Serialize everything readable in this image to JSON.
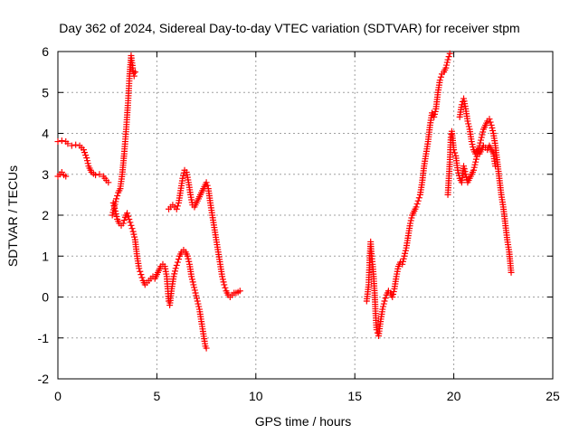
{
  "chart_data": {
    "type": "scatter",
    "title": "Day 362 of 2024, Sidereal Day-to-day VTEC variation (SDTVAR) for receiver stpm",
    "xlabel": "GPS time / hours",
    "ylabel": "SDTVAR / TECUs",
    "xlim": [
      0,
      25
    ],
    "ylim": [
      -2,
      6
    ],
    "xticks": [
      "0",
      "5",
      "10",
      "15",
      "20",
      "25"
    ],
    "yticks": [
      "-2",
      "-1",
      "0",
      "1",
      "2",
      "3",
      "4",
      "5",
      "6"
    ],
    "grid": true,
    "marker": "+",
    "marker_color": "#ff0000",
    "segments": [
      [
        [
          0.0,
          2.95
        ],
        [
          0.1,
          3.0
        ],
        [
          0.2,
          3.05
        ],
        [
          0.3,
          2.98
        ],
        [
          0.4,
          2.95
        ]
      ],
      [
        [
          0.0,
          3.8
        ],
        [
          0.2,
          3.82
        ],
        [
          0.4,
          3.8
        ],
        [
          0.5,
          3.75
        ],
        [
          0.7,
          3.7
        ],
        [
          0.9,
          3.72
        ],
        [
          1.1,
          3.7
        ],
        [
          1.3,
          3.6
        ],
        [
          1.45,
          3.4
        ],
        [
          1.55,
          3.2
        ],
        [
          1.7,
          3.05
        ],
        [
          1.9,
          2.98
        ],
        [
          2.1,
          3.0
        ],
        [
          2.3,
          2.95
        ],
        [
          2.45,
          2.85
        ],
        [
          2.55,
          2.8
        ]
      ],
      [
        [
          2.75,
          2.0
        ],
        [
          2.85,
          2.2
        ],
        [
          2.95,
          2.4
        ],
        [
          3.05,
          2.55
        ],
        [
          3.15,
          2.65
        ],
        [
          3.25,
          3.0
        ],
        [
          3.35,
          3.5
        ],
        [
          3.45,
          4.1
        ],
        [
          3.55,
          4.8
        ],
        [
          3.62,
          5.4
        ],
        [
          3.7,
          5.9
        ],
        [
          3.78,
          5.6
        ],
        [
          3.85,
          5.4
        ],
        [
          3.9,
          5.5
        ]
      ],
      [
        [
          2.8,
          2.3
        ],
        [
          2.9,
          2.1
        ],
        [
          3.0,
          1.9
        ],
        [
          3.1,
          1.8
        ],
        [
          3.2,
          1.75
        ],
        [
          3.3,
          1.8
        ],
        [
          3.4,
          1.95
        ],
        [
          3.5,
          2.05
        ],
        [
          3.6,
          1.9
        ],
        [
          3.7,
          1.75
        ],
        [
          3.8,
          1.6
        ],
        [
          3.9,
          1.4
        ],
        [
          4.0,
          1.0
        ],
        [
          4.1,
          0.7
        ],
        [
          4.2,
          0.55
        ],
        [
          4.3,
          0.4
        ],
        [
          4.4,
          0.3
        ],
        [
          4.5,
          0.35
        ],
        [
          4.6,
          0.4
        ],
        [
          4.7,
          0.45
        ],
        [
          4.8,
          0.5
        ],
        [
          4.9,
          0.45
        ],
        [
          5.0,
          0.55
        ],
        [
          5.1,
          0.65
        ],
        [
          5.2,
          0.75
        ],
        [
          5.3,
          0.8
        ],
        [
          5.4,
          0.75
        ],
        [
          5.5,
          0.5
        ],
        [
          5.55,
          0.2
        ],
        [
          5.6,
          -0.1
        ],
        [
          5.65,
          -0.2
        ],
        [
          5.75,
          0.2
        ],
        [
          5.85,
          0.5
        ],
        [
          5.95,
          0.7
        ],
        [
          6.05,
          0.85
        ],
        [
          6.15,
          1.0
        ],
        [
          6.25,
          1.1
        ],
        [
          6.35,
          1.15
        ],
        [
          6.45,
          1.1
        ],
        [
          6.55,
          1.0
        ],
        [
          6.65,
          0.8
        ],
        [
          6.75,
          0.5
        ],
        [
          6.85,
          0.3
        ],
        [
          6.95,
          0.1
        ],
        [
          7.05,
          -0.1
        ],
        [
          7.15,
          -0.3
        ],
        [
          7.25,
          -0.6
        ],
        [
          7.35,
          -0.9
        ],
        [
          7.45,
          -1.2
        ],
        [
          7.5,
          -1.25
        ]
      ],
      [
        [
          5.6,
          2.15
        ],
        [
          5.7,
          2.2
        ],
        [
          5.8,
          2.25
        ],
        [
          5.9,
          2.2
        ],
        [
          6.0,
          2.15
        ],
        [
          6.1,
          2.3
        ],
        [
          6.2,
          2.6
        ],
        [
          6.3,
          2.9
        ],
        [
          6.4,
          3.1
        ],
        [
          6.5,
          3.05
        ],
        [
          6.6,
          2.8
        ],
        [
          6.7,
          2.5
        ],
        [
          6.8,
          2.25
        ],
        [
          6.9,
          2.2
        ],
        [
          7.0,
          2.3
        ],
        [
          7.1,
          2.4
        ],
        [
          7.2,
          2.5
        ],
        [
          7.3,
          2.6
        ],
        [
          7.4,
          2.7
        ],
        [
          7.5,
          2.8
        ],
        [
          7.6,
          2.65
        ],
        [
          7.7,
          2.3
        ],
        [
          7.8,
          2.0
        ],
        [
          7.9,
          1.7
        ],
        [
          8.0,
          1.4
        ],
        [
          8.1,
          1.1
        ],
        [
          8.2,
          0.8
        ],
        [
          8.3,
          0.5
        ],
        [
          8.4,
          0.3
        ],
        [
          8.5,
          0.15
        ],
        [
          8.6,
          0.05
        ],
        [
          8.7,
          0.0
        ],
        [
          8.8,
          0.05
        ],
        [
          8.9,
          0.1
        ],
        [
          9.0,
          0.1
        ],
        [
          9.1,
          0.12
        ],
        [
          9.2,
          0.15
        ]
      ],
      [
        [
          15.6,
          -0.1
        ],
        [
          15.7,
          0.3
        ],
        [
          15.75,
          0.9
        ],
        [
          15.8,
          1.35
        ],
        [
          15.85,
          1.0
        ],
        [
          15.9,
          0.8
        ],
        [
          15.95,
          0.5
        ],
        [
          16.0,
          0.1
        ],
        [
          16.05,
          -0.4
        ],
        [
          16.1,
          -0.8
        ],
        [
          16.2,
          -0.95
        ],
        [
          16.3,
          -0.6
        ],
        [
          16.4,
          -0.3
        ],
        [
          16.5,
          -0.1
        ],
        [
          16.6,
          0.05
        ],
        [
          16.7,
          0.15
        ],
        [
          16.8,
          0.1
        ],
        [
          16.9,
          0.0
        ],
        [
          17.0,
          0.2
        ],
        [
          17.1,
          0.5
        ],
        [
          17.2,
          0.75
        ],
        [
          17.3,
          0.85
        ],
        [
          17.4,
          0.8
        ],
        [
          17.5,
          1.0
        ],
        [
          17.6,
          1.2
        ],
        [
          17.7,
          1.5
        ],
        [
          17.8,
          1.8
        ],
        [
          17.9,
          2.0
        ],
        [
          18.0,
          2.1
        ],
        [
          18.1,
          2.2
        ],
        [
          18.2,
          2.35
        ],
        [
          18.3,
          2.5
        ],
        [
          18.4,
          2.8
        ],
        [
          18.5,
          3.2
        ],
        [
          18.6,
          3.5
        ],
        [
          18.7,
          3.8
        ],
        [
          18.8,
          4.2
        ],
        [
          18.9,
          4.5
        ],
        [
          19.0,
          4.4
        ],
        [
          19.1,
          4.6
        ],
        [
          19.2,
          5.0
        ],
        [
          19.3,
          5.3
        ],
        [
          19.4,
          5.45
        ],
        [
          19.5,
          5.5
        ],
        [
          19.6,
          5.6
        ],
        [
          19.7,
          5.8
        ],
        [
          19.8,
          5.95
        ]
      ],
      [
        [
          19.7,
          2.5
        ],
        [
          19.8,
          3.3
        ],
        [
          19.85,
          3.9
        ],
        [
          19.9,
          4.05
        ],
        [
          20.0,
          3.6
        ],
        [
          20.1,
          3.45
        ],
        [
          20.2,
          3.1
        ],
        [
          20.3,
          2.9
        ],
        [
          20.4,
          2.8
        ],
        [
          20.5,
          3.2
        ],
        [
          20.6,
          3.0
        ],
        [
          20.7,
          2.8
        ],
        [
          20.8,
          2.9
        ],
        [
          20.9,
          3.0
        ],
        [
          21.0,
          3.1
        ],
        [
          21.1,
          3.3
        ],
        [
          21.2,
          3.5
        ],
        [
          21.3,
          3.7
        ],
        [
          21.4,
          3.9
        ],
        [
          21.5,
          4.1
        ],
        [
          21.6,
          4.2
        ],
        [
          21.7,
          4.3
        ],
        [
          21.8,
          4.35
        ],
        [
          21.9,
          4.2
        ],
        [
          22.0,
          4.0
        ],
        [
          22.1,
          3.7
        ],
        [
          22.2,
          3.3
        ],
        [
          22.3,
          2.9
        ],
        [
          22.4,
          2.5
        ],
        [
          22.5,
          2.2
        ],
        [
          22.6,
          1.8
        ],
        [
          22.7,
          1.4
        ],
        [
          22.8,
          1.1
        ],
        [
          22.9,
          0.6
        ]
      ],
      [
        [
          20.3,
          4.4
        ],
        [
          20.4,
          4.7
        ],
        [
          20.5,
          4.85
        ],
        [
          20.6,
          4.6
        ],
        [
          20.7,
          4.3
        ],
        [
          20.8,
          4.1
        ],
        [
          20.9,
          3.8
        ],
        [
          21.0,
          3.6
        ],
        [
          21.1,
          3.5
        ],
        [
          21.2,
          3.6
        ],
        [
          21.3,
          3.5
        ],
        [
          21.4,
          3.6
        ],
        [
          21.5,
          3.7
        ],
        [
          21.6,
          3.65
        ],
        [
          21.7,
          3.6
        ],
        [
          21.8,
          3.7
        ],
        [
          21.9,
          3.6
        ],
        [
          22.0,
          3.5
        ],
        [
          22.1,
          3.2
        ]
      ]
    ]
  }
}
